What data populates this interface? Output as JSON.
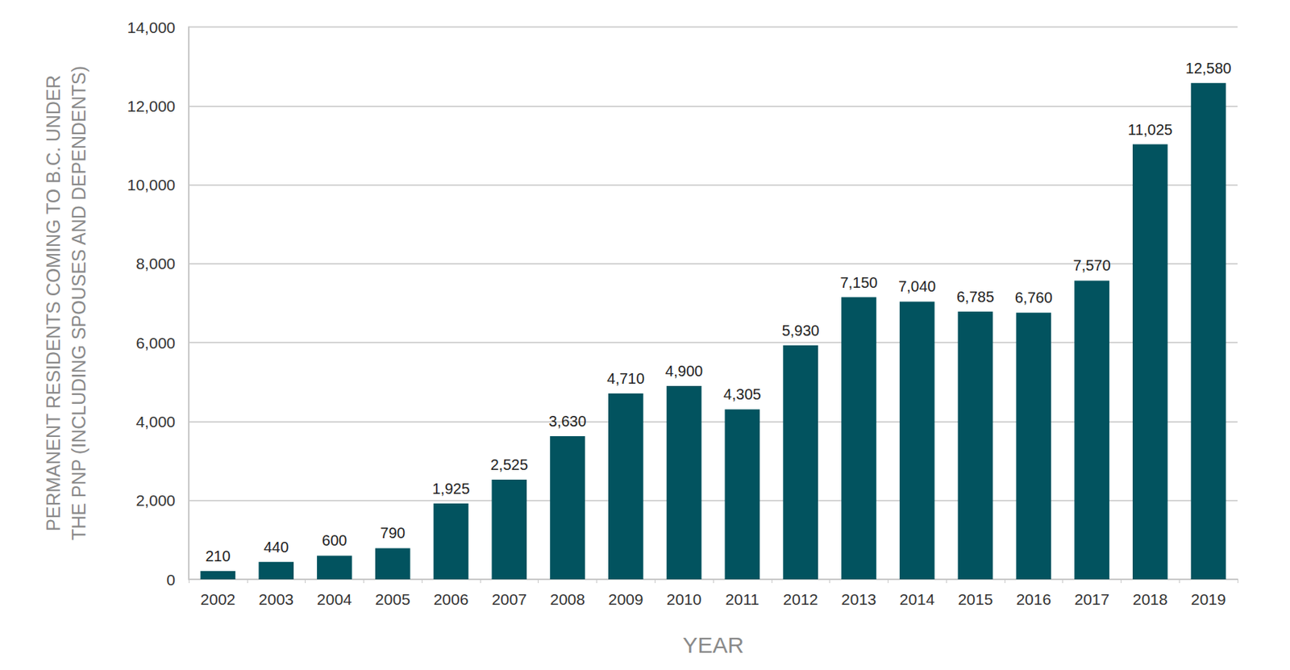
{
  "chart_data": {
    "type": "bar",
    "x_label": "YEAR",
    "y_label": "PERMANENT RESIDENTS COMING TO B.C. UNDER\nTHE PNP (INCLUDING SPOUSES AND DEPENDENTS)",
    "categories": [
      "2002",
      "2003",
      "2004",
      "2005",
      "2006",
      "2007",
      "2008",
      "2009",
      "2010",
      "2011",
      "2012",
      "2013",
      "2014",
      "2015",
      "2016",
      "2017",
      "2018",
      "2019"
    ],
    "values": [
      210,
      440,
      600,
      790,
      1925,
      2525,
      3630,
      4710,
      4900,
      4305,
      5930,
      7150,
      7040,
      6785,
      6760,
      7570,
      11025,
      12580
    ],
    "value_labels": [
      "210",
      "440",
      "600",
      "790",
      "1,925",
      "2,525",
      "3,630",
      "4,710",
      "4,900",
      "4,305",
      "5,930",
      "7,150",
      "7,040",
      "6,785",
      "6,760",
      "7,570",
      "11,025",
      "12,580"
    ],
    "color": "#02535f",
    "ylim": [
      0,
      14000
    ],
    "yticks": [
      0,
      {
        "value": 2000,
        "label": "2,000"
      },
      {
        "value": 4000,
        "label": "4,000"
      },
      {
        "value": 6000,
        "label": "6,000"
      },
      {
        "value": 8000,
        "label": "8,000"
      },
      {
        "value": 10000,
        "label": "10,000"
      },
      {
        "value": 12000,
        "label": "12,000"
      },
      {
        "value": 14000,
        "label": "14,000"
      }
    ],
    "grid": true,
    "data_labels": true
  }
}
